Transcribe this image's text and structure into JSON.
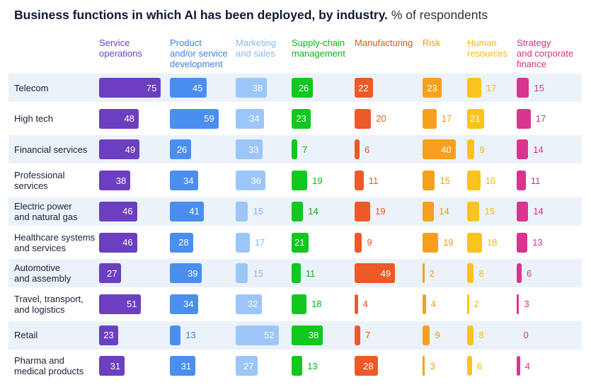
{
  "title": {
    "main": "Business functions in which AI has been deployed, by industry.",
    "sub": "% of respondents"
  },
  "chart_data": {
    "type": "bar",
    "orientation": "horizontal small multiples",
    "title": "Business functions in which AI has been deployed, by industry.",
    "subtitle": "% of respondents",
    "columns": [
      {
        "name": "Service operations",
        "lines": [
          "Service",
          "operations"
        ],
        "color": "#6b3fc0",
        "text_color": "#6b3fc0"
      },
      {
        "name": "Product and/or service development",
        "lines": [
          "Product",
          "and/or service",
          "development"
        ],
        "color": "#4a8ef0",
        "text_color": "#3f82e6"
      },
      {
        "name": "Marketing and sales",
        "lines": [
          "Marketing",
          "and sales"
        ],
        "color": "#9cc6f7",
        "text_color": "#8bb8ee"
      },
      {
        "name": "Supply-chain management",
        "lines": [
          "Supply-chain",
          "management"
        ],
        "color": "#10c81e",
        "text_color": "#0bb516"
      },
      {
        "name": "Manufacturing",
        "lines": [
          "Manufacturing"
        ],
        "color": "#ec5a28",
        "text_color": "#e9531f"
      },
      {
        "name": "Risk",
        "lines": [
          "Risk"
        ],
        "color": "#f6a01e",
        "text_color": "#f29a14"
      },
      {
        "name": "Human resources",
        "lines": [
          "Human",
          "resources"
        ],
        "color": "#fac31d",
        "text_color": "#f5b90c"
      },
      {
        "name": "Strategy and corporate finance",
        "lines": [
          "Strategy",
          "and corporate",
          "finance"
        ],
        "color": "#d9358f",
        "text_color": "#d42f88"
      }
    ],
    "rows": [
      {
        "lines": [
          "Telecom"
        ],
        "values": [
          75,
          45,
          38,
          26,
          22,
          23,
          17,
          15
        ]
      },
      {
        "lines": [
          "High tech"
        ],
        "values": [
          48,
          59,
          34,
          23,
          20,
          17,
          21,
          17
        ]
      },
      {
        "lines": [
          "Financial services"
        ],
        "values": [
          49,
          26,
          33,
          7,
          6,
          40,
          9,
          14
        ]
      },
      {
        "lines": [
          "Professional",
          "services"
        ],
        "values": [
          38,
          34,
          36,
          19,
          11,
          15,
          16,
          11
        ]
      },
      {
        "lines": [
          "Electric power",
          "and natural gas"
        ],
        "values": [
          46,
          41,
          15,
          14,
          19,
          14,
          15,
          14
        ]
      },
      {
        "lines": [
          "Healthcare systems",
          "and services"
        ],
        "values": [
          46,
          28,
          17,
          21,
          9,
          19,
          18,
          13
        ]
      },
      {
        "lines": [
          "Automotive",
          "and assembly"
        ],
        "values": [
          27,
          39,
          15,
          11,
          49,
          2,
          8,
          6
        ]
      },
      {
        "lines": [
          "Travel, transport,",
          "and logistics"
        ],
        "values": [
          51,
          34,
          32,
          18,
          4,
          4,
          2,
          3
        ]
      },
      {
        "lines": [
          "Retail"
        ],
        "values": [
          23,
          13,
          52,
          38,
          7,
          9,
          8,
          0
        ]
      },
      {
        "lines": [
          "Pharma and",
          "medical products"
        ],
        "values": [
          31,
          31,
          27,
          13,
          28,
          3,
          6,
          4
        ]
      }
    ],
    "xlim": [
      0,
      100
    ],
    "grid": false,
    "legend": "none"
  }
}
